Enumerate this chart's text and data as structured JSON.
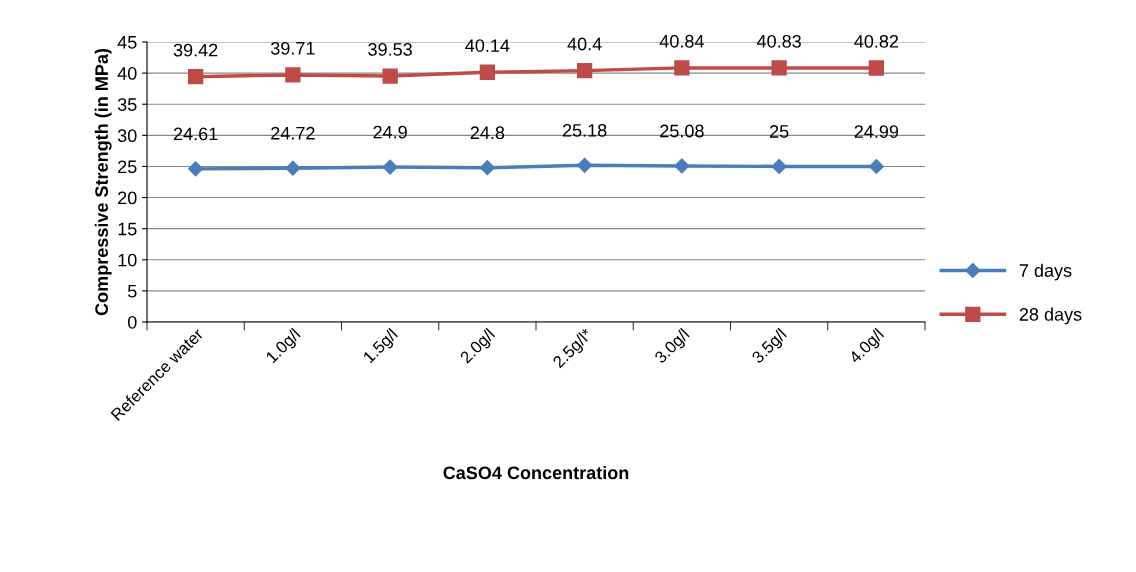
{
  "chart_data": {
    "type": "line",
    "xlabel": "CaSO4 Concentration",
    "ylabel": "Compressive Strength (in MPa)",
    "categories": [
      "Reference water",
      "1.0g/l",
      "1.5g/l",
      "2.0g/l",
      "2.5g/l*",
      "3.0g/l",
      "3.5g/l",
      "4.0g/l"
    ],
    "series": [
      {
        "name": "7 days",
        "color": "#4a7ebb",
        "marker": "diamond",
        "values": [
          24.61,
          24.72,
          24.9,
          24.8,
          25.18,
          25.08,
          25,
          24.99
        ]
      },
      {
        "name": "28 days",
        "color": "#be4b48",
        "marker": "square",
        "values": [
          39.42,
          39.71,
          39.53,
          40.14,
          40.4,
          40.84,
          40.83,
          40.82
        ]
      }
    ],
    "ylim": [
      0,
      45
    ],
    "yticks": [
      0,
      5,
      10,
      15,
      20,
      25,
      30,
      35,
      40,
      45
    ],
    "grid": "y",
    "legend": "right",
    "data_labels": true,
    "line_style": "solid"
  }
}
